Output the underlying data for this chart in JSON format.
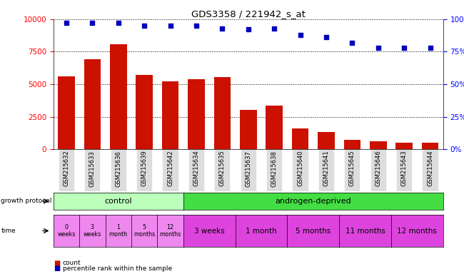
{
  "title": "GDS3358 / 221942_s_at",
  "samples": [
    "GSM215632",
    "GSM215633",
    "GSM215636",
    "GSM215639",
    "GSM215642",
    "GSM215634",
    "GSM215635",
    "GSM215637",
    "GSM215638",
    "GSM215640",
    "GSM215641",
    "GSM215645",
    "GSM215646",
    "GSM215643",
    "GSM215644"
  ],
  "counts": [
    5600,
    6900,
    8100,
    5700,
    5200,
    5400,
    5550,
    3050,
    3350,
    1600,
    1350,
    750,
    600,
    500,
    500
  ],
  "percentiles": [
    97,
    97,
    97,
    95,
    95,
    95,
    93,
    92,
    93,
    88,
    86,
    82,
    78,
    78,
    78
  ],
  "ylim_left": [
    0,
    10000
  ],
  "ylim_right": [
    0,
    100
  ],
  "yticks_left": [
    0,
    2500,
    5000,
    7500,
    10000
  ],
  "yticks_right": [
    0,
    25,
    50,
    75,
    100
  ],
  "bar_color": "#cc1100",
  "dot_color": "#0000bb",
  "control_bg": "#bbffbb",
  "androgen_bg": "#44dd44",
  "time_ctrl_bg": "#ee88ee",
  "time_and_bg": "#dd44dd",
  "xtick_bg": "#dddddd",
  "control_label": "control",
  "androgen_label": "androgen-deprived",
  "time_labels_control": [
    "0\nweeks",
    "3\nweeks",
    "1\nmonth",
    "5\nmonths",
    "12\nmonths"
  ],
  "time_labels_androgen": [
    "3 weeks",
    "1 month",
    "5 months",
    "11 months",
    "12 months"
  ],
  "androgen_spans": [
    2,
    2,
    2,
    2,
    2
  ],
  "n_control": 5,
  "n_androgen": 10,
  "growth_protocol_label": "growth protocol",
  "time_label": "time",
  "legend_count": "count",
  "legend_percentile": "percentile rank within the sample"
}
